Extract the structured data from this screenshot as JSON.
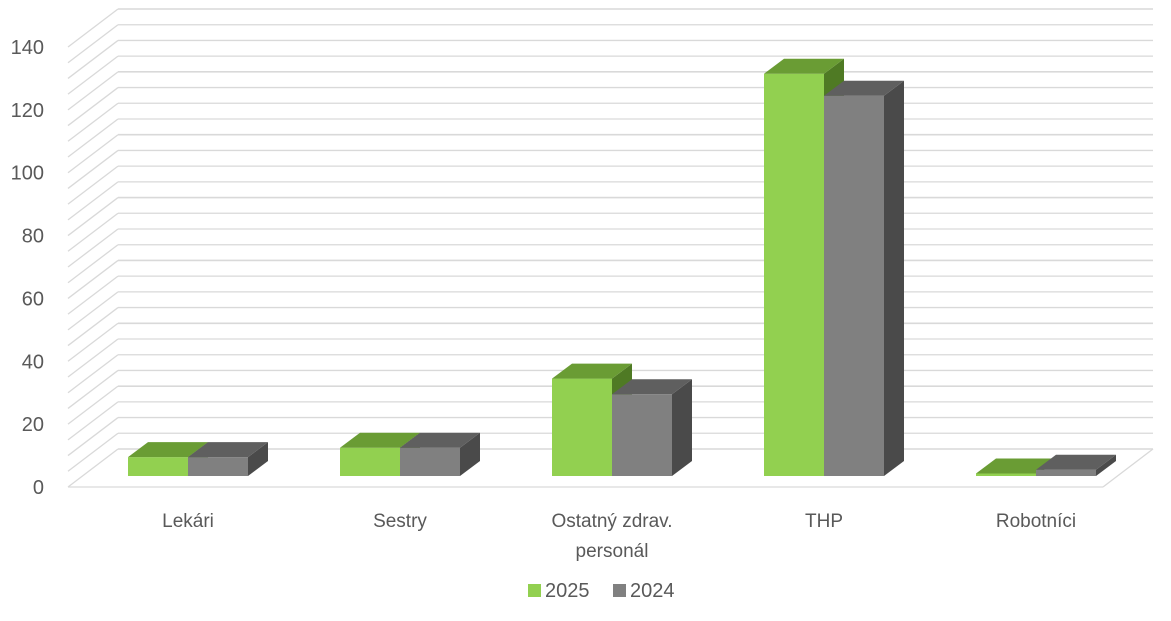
{
  "chart_data": {
    "type": "bar",
    "style": "3d-clustered-column",
    "categories": [
      [
        "Lekári"
      ],
      [
        "Sestry"
      ],
      [
        "Ostatný zdrav.",
        "personál"
      ],
      [
        "THP"
      ],
      [
        "Robotníci"
      ]
    ],
    "series": [
      {
        "name": "2025",
        "values": [
          6,
          9,
          31,
          128,
          0.8
        ]
      },
      {
        "name": "2024",
        "values": [
          6,
          9,
          26,
          121,
          2
        ]
      }
    ],
    "yticks": [
      "0",
      "20",
      "40",
      "60",
      "80",
      "100",
      "120",
      "140"
    ],
    "ylim": [
      0,
      140
    ],
    "grid": true,
    "legend_position": "bottom-center",
    "colors": {
      "2025": {
        "front": "#92d050",
        "top": "#6a9c34",
        "side": "#4f7a24"
      },
      "2024": {
        "front": "#808080",
        "top": "#5f5f5f",
        "side": "#4a4a4a"
      },
      "grid": "#d9d9d9",
      "text": "#595959"
    }
  }
}
